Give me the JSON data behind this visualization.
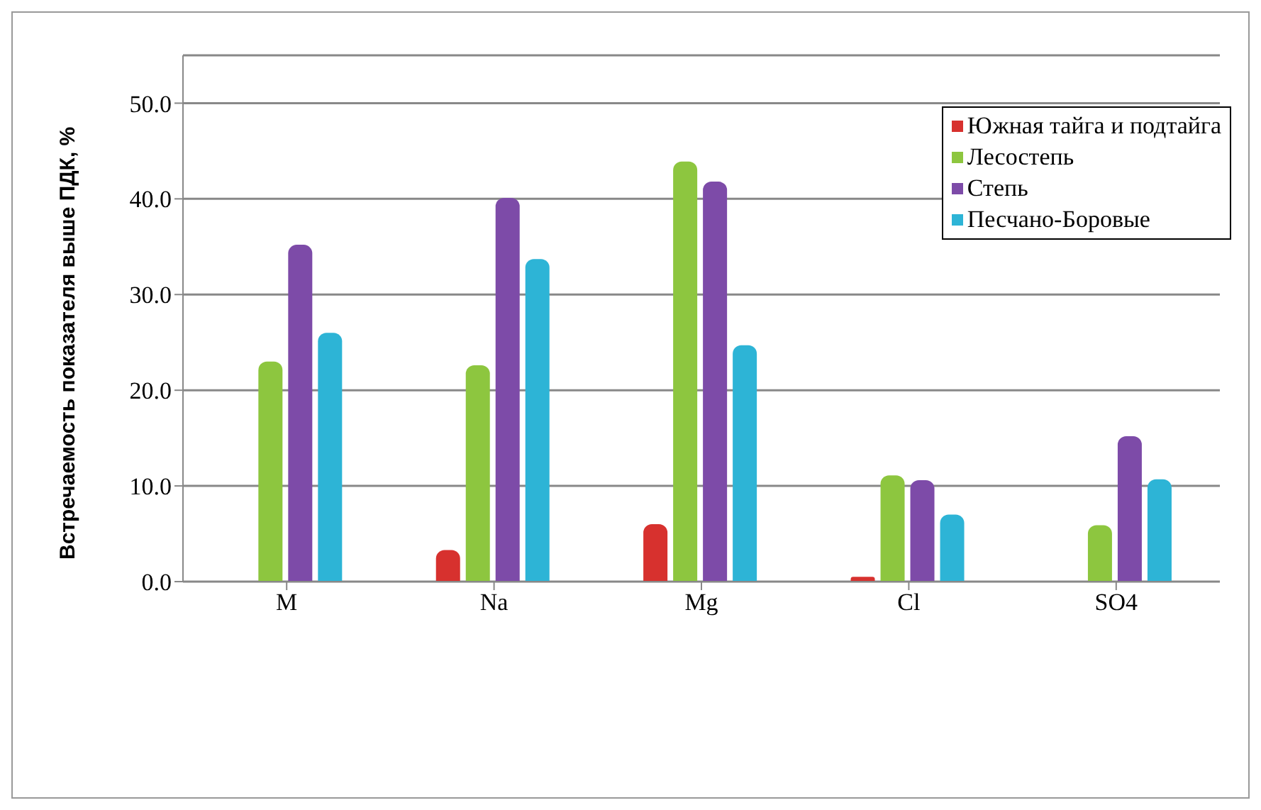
{
  "chart_data": {
    "type": "bar",
    "ylabel": "Встречаемость показателя выше ПДК, %",
    "categories": [
      "M",
      "Na",
      "Mg",
      "Cl",
      "SO4"
    ],
    "series": [
      {
        "name": "Южная тайга и подтайга",
        "color": "#d7312e",
        "values": [
          null,
          3.3,
          6.0,
          0.5,
          null
        ]
      },
      {
        "name": "Лесостепь",
        "color": "#8dc63f",
        "values": [
          23.0,
          22.6,
          43.9,
          11.1,
          5.9
        ]
      },
      {
        "name": "Степь",
        "color": "#7d4ba8",
        "values": [
          35.2,
          40.1,
          41.8,
          10.6,
          15.2
        ]
      },
      {
        "name": "Песчано-Боровые",
        "color": "#2db4d6",
        "values": [
          26.0,
          33.7,
          24.7,
          7.0,
          10.7
        ]
      }
    ],
    "ylim": [
      0,
      55
    ],
    "yticks": [
      {
        "value": 0,
        "label": "0.0"
      },
      {
        "value": 10,
        "label": "10.0"
      },
      {
        "value": 20,
        "label": "20.0"
      },
      {
        "value": 30,
        "label": "30.0"
      },
      {
        "value": 40,
        "label": "40.0"
      },
      {
        "value": 50,
        "label": "50.0"
      }
    ],
    "grid": "y",
    "legend": "top right"
  }
}
